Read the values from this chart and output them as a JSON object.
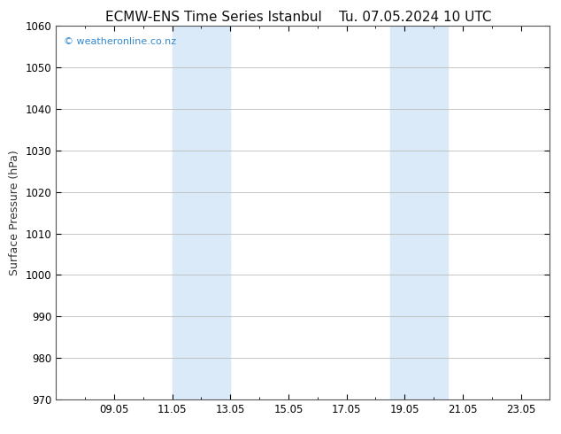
{
  "title_left": "ECMW-ENS Time Series Istanbul",
  "title_right": "Tu. 07.05.2024 10 UTC",
  "ylabel": "Surface Pressure (hPa)",
  "ylim": [
    970,
    1060
  ],
  "yticks": [
    970,
    980,
    990,
    1000,
    1010,
    1020,
    1030,
    1040,
    1050,
    1060
  ],
  "xtick_labels": [
    "09.05",
    "11.05",
    "13.05",
    "15.05",
    "17.05",
    "19.05",
    "21.05",
    "23.05"
  ],
  "xtick_positions": [
    2,
    4,
    6,
    8,
    10,
    12,
    14,
    16
  ],
  "xlim": [
    0,
    17.0
  ],
  "shade1_xmin": 4.0,
  "shade1_xmax": 6.0,
  "shade2_xmin": 11.5,
  "shade2_xmax": 13.5,
  "shade_color": "#daeaf8",
  "background_color": "#ffffff",
  "plot_bg_color": "#ffffff",
  "grid_color": "#bbbbbb",
  "spine_color": "#555555",
  "watermark_text": "© weatheronline.co.nz",
  "watermark_color": "#3388cc",
  "title_fontsize": 11,
  "axis_label_fontsize": 9,
  "tick_fontsize": 8.5,
  "watermark_fontsize": 8
}
